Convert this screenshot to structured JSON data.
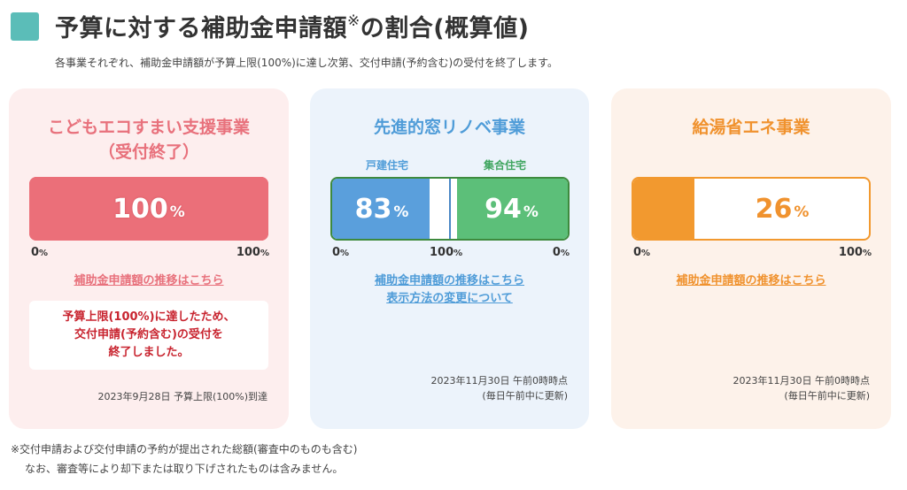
{
  "header": {
    "title": "予算に対する補助金申請額",
    "title_mark": "※",
    "title_suffix": "の割合(概算値)",
    "subtitle": "各事業それぞれ、補助金申請額が予算上限(100%)に達し次第、交付申請(予約含む)の受付を終了します。",
    "accent_color": "#5bbdb8"
  },
  "cards": [
    {
      "title_line1": "こどもエコすまい支援事業",
      "title_line2": "（受付終了）",
      "value": "100",
      "unit": "%",
      "fill_fraction": 1.0,
      "axis_min": "0",
      "axis_max": "100",
      "axis_unit": "%",
      "link": "補助金申請額の推移はこちら",
      "notice_line1": "予算上限(100%)に達したため、",
      "notice_line2": "交付申請(予約含む)の受付を",
      "notice_line3": "終了しました。",
      "footnote": "2023年9月28日 予算上限(100%)到達",
      "color": "#eb6f79"
    },
    {
      "title": "先進的窓リノベ事業",
      "label_house": "戸建住宅",
      "label_apt": "集合住宅",
      "value_house": "83",
      "value_apt": "94",
      "unit": "%",
      "fill_house": 0.83,
      "fill_apt": 0.94,
      "axis_left": "0",
      "axis_mid": "100",
      "axis_right": "0",
      "axis_unit": "%",
      "link1": "補助金申請額の推移はこちら",
      "link2": "表示方法の変更について",
      "footnote_line1": "2023年11月30日 午前0時時点",
      "footnote_line2": "(毎日午前中に更新)",
      "color_house": "#5a9fdc",
      "color_apt": "#5cbf79"
    },
    {
      "title": "給湯省エネ事業",
      "value": "26",
      "unit": "%",
      "fill_fraction": 0.26,
      "axis_min": "0",
      "axis_max": "100",
      "axis_unit": "%",
      "link": "補助金申請額の推移はこちら",
      "footnote_line1": "2023年11月30日 午前0時時点",
      "footnote_line2": "(毎日午前中に更新)",
      "color": "#f2992f"
    }
  ],
  "footnotes": {
    "line1": "※交付申請および交付申請の予約が提出された総額(審査中のものも含む)",
    "line2": "なお、審査等により却下または取り下げされたものは含みません。"
  }
}
